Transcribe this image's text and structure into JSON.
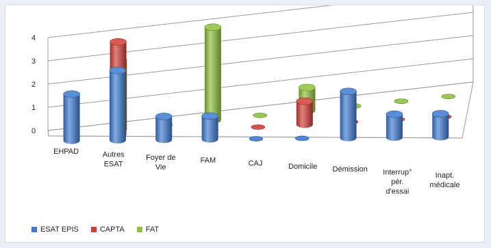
{
  "chart_data": {
    "type": "bar",
    "style": "3d-cylinder",
    "title": "",
    "xlabel": "",
    "ylabel": "",
    "ylim": [
      0,
      4
    ],
    "yticks": [
      "0",
      "1",
      "2",
      "3",
      "4"
    ],
    "grid": true,
    "legend_position": "bottom-left",
    "categories": [
      [
        "EHPAD"
      ],
      [
        "Autres",
        "ESAT"
      ],
      [
        "Foyer de",
        "Vie"
      ],
      [
        "FAM"
      ],
      [
        "CAJ"
      ],
      [
        "Domicile"
      ],
      [
        "Démission"
      ],
      [
        "Interrup°",
        "pér.",
        "d'essai"
      ],
      [
        "Inapt.",
        "médicale"
      ]
    ],
    "series": [
      {
        "name": "ESAT EPIS",
        "color": "#3d7bd1",
        "values": [
          2,
          3,
          1,
          1,
          0,
          0,
          2,
          1,
          1
        ]
      },
      {
        "name": "CAPTA",
        "color": "#d23c35",
        "values": [
          0,
          4,
          0,
          0,
          0,
          1,
          0,
          0,
          0
        ]
      },
      {
        "name": "FAT",
        "color": "#8fc23a",
        "values": [
          0,
          3,
          0,
          4,
          0,
          1,
          0,
          0,
          0
        ]
      }
    ]
  }
}
